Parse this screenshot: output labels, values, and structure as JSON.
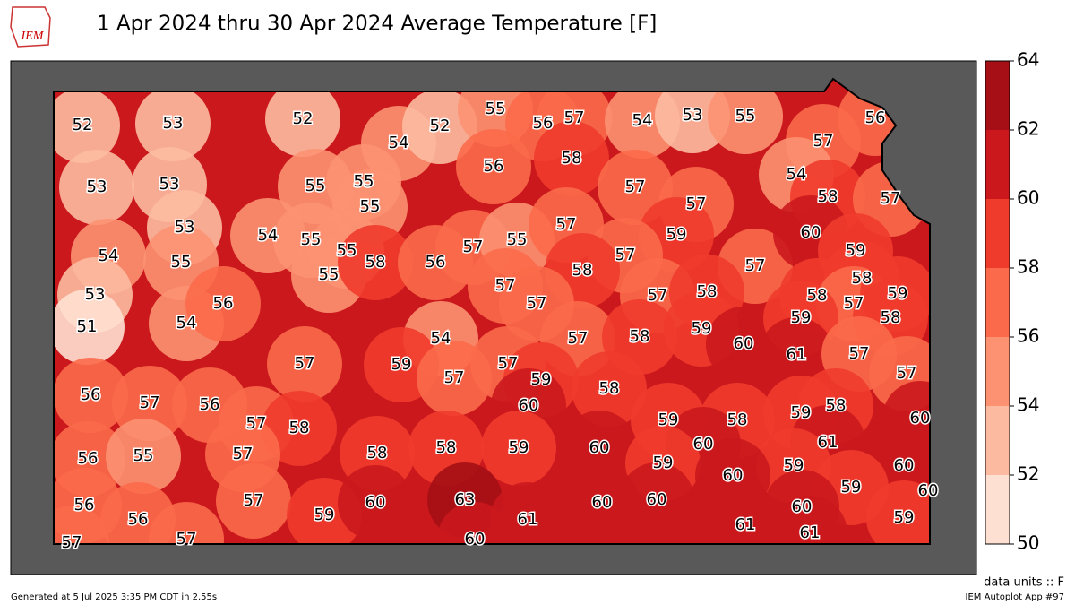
{
  "header": {
    "logo": "IEM",
    "title": "1 Apr 2024 thru 30 Apr 2024 Average Temperature [F]"
  },
  "map": {
    "station_values": [
      52,
      53,
      52,
      54,
      52,
      55,
      56,
      57,
      54,
      53,
      55,
      56,
      57,
      53,
      53,
      55,
      55,
      55,
      56,
      58,
      57,
      54,
      58,
      57,
      57,
      54,
      53,
      54,
      55,
      55,
      55,
      55,
      58,
      56,
      57,
      55,
      57,
      59,
      57,
      58,
      57,
      57,
      57,
      60,
      59,
      58,
      58,
      57,
      59,
      58,
      57,
      58,
      53,
      51,
      54,
      56,
      54,
      57,
      58,
      59,
      60,
      59,
      61,
      57,
      57,
      57,
      59,
      57,
      57,
      59,
      58,
      60,
      56,
      57,
      56,
      57,
      58,
      59,
      58,
      59,
      58,
      60,
      56,
      55,
      57,
      58,
      58,
      59,
      60,
      60,
      59,
      61,
      59,
      60,
      60,
      59,
      60,
      56,
      56,
      57,
      59,
      60,
      63,
      61,
      60,
      60,
      60,
      61,
      59,
      61,
      57,
      57,
      60
    ]
  },
  "colorbar": {
    "lim": [
      50,
      64
    ],
    "ticks": [
      50,
      52,
      54,
      56,
      58,
      60,
      62,
      64
    ],
    "colors": [
      "#fee0d2",
      "#fcbba1",
      "#fc9272",
      "#fb6a4a",
      "#ef3b2c",
      "#cb181d",
      "#a50f15"
    ]
  },
  "footer": {
    "units": "data units :: F",
    "generated": "Generated at 5 Jul 2025 3:35 PM CDT in 2.55s",
    "app": "IEM Autoplot App #97"
  }
}
